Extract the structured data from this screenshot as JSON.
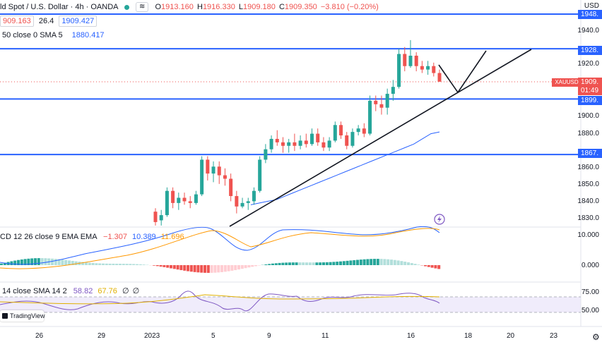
{
  "header": {
    "symbol": "ld Spot / U.S. Dollar · 4h · OANDA",
    "icon_wave": "≋",
    "ohlc": {
      "o_label": "O",
      "o": "1913.160",
      "h_label": "H",
      "h": "1916.330",
      "l_label": "L",
      "l": "1909.180",
      "c_label": "C",
      "c": "1909.350",
      "change": "−3.810 (−0.20%)"
    },
    "bid": "909.163",
    "spread": "26.4",
    "ask": "1909.427"
  },
  "sma_legend": {
    "label": "50 close 0 SMA 5",
    "value": "1880.417"
  },
  "macd_legend": {
    "label": "CD 12 26 close 9 EMA EMA",
    "v1": "−1.307",
    "v2": "10.389",
    "v3": "11.696"
  },
  "rsi_legend": {
    "label": "14 close SMA 14 2",
    "v1": "58.82",
    "v2": "67.76",
    "v3": "∅",
    "v4": "∅"
  },
  "price_axis": [
    "1940.0",
    "1930.0",
    "1920.0",
    "1910.0",
    "1900.0",
    "1890.0",
    "1880.0",
    "1870.0",
    "1860.0",
    "1850.0",
    "1840.0",
    "1830.0"
  ],
  "macd_axis": [
    "10.000",
    "0.000"
  ],
  "rsi_axis": [
    "75.00",
    "50.00"
  ],
  "price_tags": {
    "usd": "USD",
    "t1948": "1948.",
    "t1928": "1928.",
    "t1909": "1909.",
    "countdown": "01:49",
    "t1899": "1899.",
    "t1867": "1867.",
    "t1860": "1860.0",
    "t1830": "1830.0"
  },
  "xau_tag": "XAUUSD",
  "x_axis": [
    "26",
    "29",
    "2023",
    "5",
    "9",
    "11",
    "16",
    "18",
    "20",
    "23"
  ],
  "logo_text": "TradingView",
  "colors": {
    "up": "#26a69a",
    "down": "#ef5350",
    "hline": "#2962ff",
    "sma": "#2962ff",
    "macd": "#2962ff",
    "signal": "#ff9800",
    "rsi": "#7e57c2",
    "rsi_ma": "#e0b000"
  },
  "chart_data": {
    "type": "candlestick",
    "title": "",
    "xlabel": "",
    "ylabel": "",
    "ylim": [
      1825,
      1952
    ],
    "horizontal_levels": [
      1948.0,
      1928.0,
      1899.0,
      1867.0
    ],
    "candles": [
      [
        1834,
        1836,
        1826,
        1828
      ],
      [
        1829,
        1835,
        1826,
        1832
      ],
      [
        1832,
        1848,
        1831,
        1846
      ],
      [
        1846,
        1848,
        1836,
        1839
      ],
      [
        1839,
        1845,
        1835,
        1842
      ],
      [
        1842,
        1845,
        1838,
        1840
      ],
      [
        1840,
        1843,
        1836,
        1839
      ],
      [
        1839,
        1846,
        1838,
        1844
      ],
      [
        1844,
        1866,
        1843,
        1864
      ],
      [
        1864,
        1866,
        1852,
        1856
      ],
      [
        1856,
        1863,
        1851,
        1860
      ],
      [
        1860,
        1863,
        1850,
        1855
      ],
      [
        1855,
        1859,
        1849,
        1853
      ],
      [
        1853,
        1856,
        1840,
        1843
      ],
      [
        1843,
        1846,
        1833,
        1837
      ],
      [
        1837,
        1842,
        1836,
        1839
      ],
      [
        1839,
        1842,
        1835,
        1840
      ],
      [
        1840,
        1848,
        1838,
        1846
      ],
      [
        1846,
        1866,
        1845,
        1864
      ],
      [
        1864,
        1873,
        1862,
        1870
      ],
      [
        1870,
        1878,
        1868,
        1876
      ],
      [
        1876,
        1881,
        1872,
        1874
      ],
      [
        1874,
        1877,
        1868,
        1872
      ],
      [
        1872,
        1876,
        1868,
        1874
      ],
      [
        1874,
        1879,
        1869,
        1872
      ],
      [
        1872,
        1878,
        1870,
        1875
      ],
      [
        1875,
        1879,
        1871,
        1873
      ],
      [
        1873,
        1882,
        1872,
        1879
      ],
      [
        1879,
        1882,
        1872,
        1874
      ],
      [
        1874,
        1877,
        1869,
        1871
      ],
      [
        1871,
        1877,
        1869,
        1875
      ],
      [
        1875,
        1886,
        1874,
        1884
      ],
      [
        1884,
        1886,
        1876,
        1878
      ],
      [
        1878,
        1880,
        1870,
        1872
      ],
      [
        1872,
        1882,
        1871,
        1880
      ],
      [
        1880,
        1884,
        1878,
        1882
      ],
      [
        1882,
        1885,
        1877,
        1879
      ],
      [
        1879,
        1901,
        1878,
        1898
      ],
      [
        1898,
        1901,
        1892,
        1896
      ],
      [
        1896,
        1901,
        1890,
        1894
      ],
      [
        1894,
        1905,
        1890,
        1902
      ],
      [
        1902,
        1910,
        1898,
        1906
      ],
      [
        1906,
        1928,
        1905,
        1925
      ],
      [
        1925,
        1929,
        1915,
        1918
      ],
      [
        1918,
        1933,
        1917,
        1924
      ],
      [
        1924,
        1926,
        1915,
        1918
      ],
      [
        1918,
        1921,
        1914,
        1916
      ],
      [
        1916,
        1921,
        1913,
        1918
      ],
      [
        1918,
        1920,
        1912,
        1914
      ],
      [
        1914,
        1916,
        1909,
        1909
      ]
    ],
    "sma": [
      1838,
      1839,
      1840,
      1841,
      1843,
      1845,
      1847,
      1849,
      1851,
      1853,
      1855,
      1857,
      1859,
      1861,
      1863,
      1865,
      1867,
      1869,
      1871,
      1873,
      1876,
      1879,
      1880
    ],
    "macd": {
      "macd": -1.307,
      "signal": 10.389,
      "histogram": 11.696
    },
    "rsi": {
      "rsi": 58.82,
      "ma": 67.76,
      "levels": [
        70,
        50,
        30
      ]
    }
  }
}
